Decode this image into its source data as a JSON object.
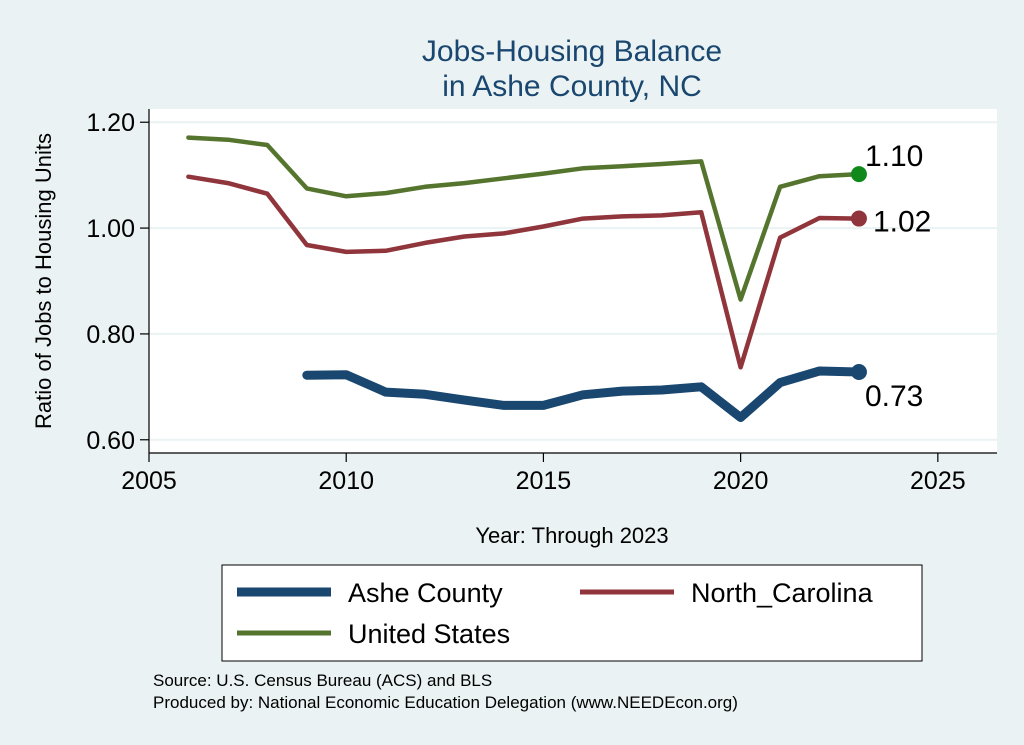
{
  "chart_data": {
    "type": "line",
    "title": "Jobs-Housing Balance",
    "subtitle": "in Ashe County, NC",
    "xlabel": "Year: Through 2023",
    "ylabel": "Ratio of Jobs to Housing Units",
    "xlim": [
      2005,
      2026.5
    ],
    "ylim": [
      0.575,
      1.225
    ],
    "xticks": [
      2005,
      2010,
      2015,
      2020,
      2025
    ],
    "yticks": [
      0.6,
      0.8,
      1.0,
      1.2
    ],
    "ytick_labels": [
      "0.60",
      "0.80",
      "1.00",
      "1.20"
    ],
    "grid": true,
    "legend_position": "bottom",
    "series": [
      {
        "name": "Ashe County",
        "color": "#1a476f",
        "x": [
          2009,
          2010,
          2011,
          2012,
          2013,
          2014,
          2015,
          2016,
          2017,
          2018,
          2019,
          2020,
          2021,
          2022,
          2023
        ],
        "values": [
          0.722,
          0.723,
          0.69,
          0.686,
          0.675,
          0.665,
          0.665,
          0.685,
          0.692,
          0.694,
          0.7,
          0.642,
          0.708,
          0.73,
          0.728
        ],
        "end_label": "0.73"
      },
      {
        "name": "North_Carolina",
        "color": "#90353b",
        "x": [
          2006,
          2007,
          2008,
          2009,
          2010,
          2011,
          2012,
          2013,
          2014,
          2015,
          2016,
          2017,
          2018,
          2019,
          2020,
          2021,
          2022,
          2023
        ],
        "values": [
          1.097,
          1.085,
          1.065,
          0.968,
          0.955,
          0.957,
          0.972,
          0.984,
          0.99,
          1.003,
          1.018,
          1.022,
          1.024,
          1.03,
          0.737,
          0.982,
          1.019,
          1.018
        ],
        "end_label": "1.02"
      },
      {
        "name": "United States",
        "color": "#55752f",
        "x": [
          2006,
          2007,
          2008,
          2009,
          2010,
          2011,
          2012,
          2013,
          2014,
          2015,
          2016,
          2017,
          2018,
          2019,
          2020,
          2021,
          2022,
          2023
        ],
        "values": [
          1.171,
          1.167,
          1.157,
          1.075,
          1.06,
          1.066,
          1.078,
          1.085,
          1.094,
          1.103,
          1.113,
          1.117,
          1.121,
          1.126,
          0.865,
          1.078,
          1.098,
          1.102
        ],
        "end_label": "1.10",
        "marker_color": "#0f8a1a"
      }
    ],
    "legend": [
      "Ashe County",
      "North_Carolina",
      "United States"
    ]
  },
  "notes": {
    "source": "Source: U.S. Census Bureau (ACS) and BLS",
    "produced_by": "Produced by: National Economic Education Delegation (www.NEEDEcon.org)"
  }
}
